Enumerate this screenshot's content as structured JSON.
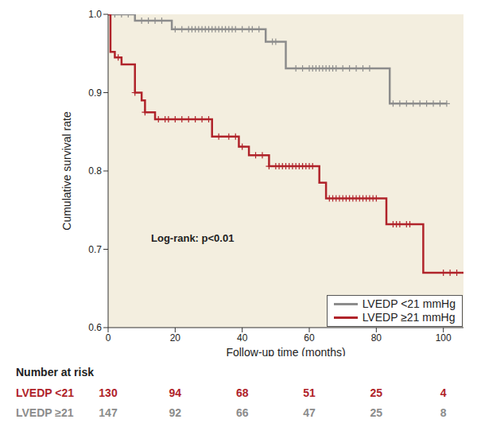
{
  "chart_data": {
    "type": "line",
    "title": null,
    "x_label": "Follow-up time (months)",
    "y_label": "Cumulative survival rate",
    "xlim": [
      0,
      106
    ],
    "xticks": [
      0,
      20,
      40,
      60,
      80,
      100
    ],
    "ylim": [
      0.6,
      1
    ],
    "yticks": [
      0.6,
      0.7,
      0.8,
      0.9,
      {
        "value": 1,
        "label": "1.0"
      }
    ],
    "grid": false,
    "legend": "lower right",
    "line_style": "step",
    "annotation": "Log-rank: p<0.01",
    "series": [
      {
        "name": "LVEDP <21 mmHg",
        "color": "#8c8c8c",
        "x": [
          0,
          8,
          19,
          47,
          53,
          84,
          101
        ],
        "values": [
          1,
          0.992,
          0.981,
          0.965,
          0.931,
          0.886,
          0.886
        ],
        "marker": "plus",
        "censored_x": [
          2,
          4,
          6,
          10,
          12,
          14,
          16,
          20,
          22,
          24,
          25,
          26,
          27,
          28,
          29,
          30,
          31,
          32,
          33,
          34,
          35,
          36,
          37,
          38,
          40,
          42,
          43,
          45,
          49,
          50,
          56,
          58,
          60,
          61,
          62,
          63,
          64,
          65,
          66,
          67,
          68,
          70,
          72,
          74,
          76,
          78,
          85,
          87,
          89,
          91,
          93,
          95,
          97,
          99,
          101
        ]
      },
      {
        "name": "LVEDP ≥21 mmHg",
        "color": "#b0232a",
        "x": [
          0,
          0.7,
          2,
          4,
          8,
          10,
          11,
          14,
          31,
          39,
          42,
          48,
          63,
          65,
          83,
          94,
          106
        ],
        "values": [
          1,
          0.952,
          0.945,
          0.936,
          0.9,
          0.89,
          0.875,
          0.866,
          0.844,
          0.831,
          0.82,
          0.806,
          0.785,
          0.765,
          0.732,
          0.67,
          0.67
        ],
        "marker": "plus",
        "censored_x": [
          3,
          8,
          11,
          15,
          17,
          18,
          20,
          22,
          24,
          26,
          28,
          30,
          33,
          36,
          38,
          40,
          44,
          46,
          48,
          50,
          51,
          52,
          53,
          54,
          55,
          56,
          57,
          58,
          59,
          60,
          61,
          66,
          67,
          68,
          69,
          70,
          71,
          72,
          73,
          74,
          75,
          76,
          77,
          78,
          79,
          80,
          85,
          86,
          87,
          89,
          90,
          100,
          102,
          104
        ]
      }
    ]
  },
  "number_at_risk": {
    "title": "Number at risk",
    "rows": [
      {
        "label": "LVEDP <21",
        "color": "#b0232a",
        "values": [
          130,
          94,
          68,
          51,
          25,
          4
        ]
      },
      {
        "label": "LVEDP ≥21",
        "color": "#8c8c8c",
        "values": [
          147,
          92,
          66,
          47,
          25,
          8
        ]
      }
    ]
  }
}
